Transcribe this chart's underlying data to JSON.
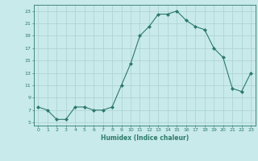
{
  "x": [
    0,
    1,
    2,
    3,
    4,
    5,
    6,
    7,
    8,
    9,
    10,
    11,
    12,
    13,
    14,
    15,
    16,
    17,
    18,
    19,
    20,
    21,
    22,
    23
  ],
  "y": [
    7.5,
    7.0,
    5.5,
    5.5,
    7.5,
    7.5,
    7.0,
    7.0,
    7.5,
    11.0,
    14.5,
    19.0,
    20.5,
    22.5,
    22.5,
    23.0,
    21.5,
    20.5,
    20.0,
    17.0,
    15.5,
    10.5,
    10.0,
    13.0
  ],
  "xlabel": "Humidex (Indice chaleur)",
  "yticks": [
    5,
    7,
    9,
    11,
    13,
    15,
    17,
    19,
    21,
    23
  ],
  "xticks": [
    0,
    1,
    2,
    3,
    4,
    5,
    6,
    7,
    8,
    9,
    10,
    11,
    12,
    13,
    14,
    15,
    16,
    17,
    18,
    19,
    20,
    21,
    22,
    23
  ],
  "ylim": [
    4.5,
    24.0
  ],
  "xlim": [
    -0.5,
    23.5
  ],
  "line_color": "#2d7a6a",
  "marker": "D",
  "marker_size": 2.0,
  "bg_color": "#c8eaea",
  "grid_color": "#b0d4d4",
  "axes_color": "#2d7a6a",
  "tick_color": "#2d7a6a",
  "label_color": "#2d7a6a"
}
